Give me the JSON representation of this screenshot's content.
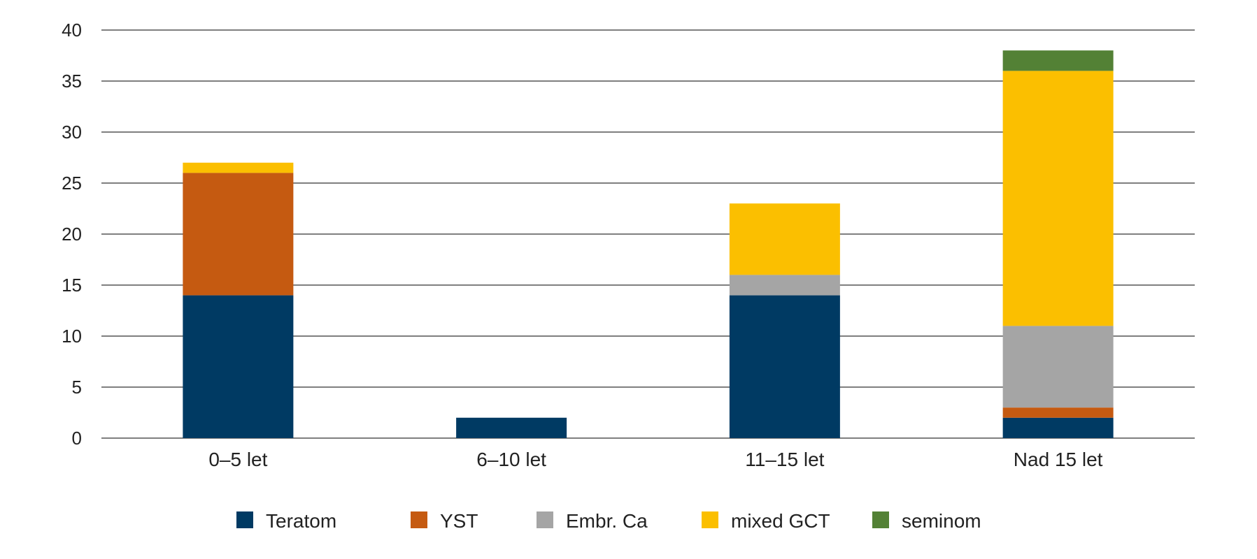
{
  "chart_data": {
    "type": "bar",
    "stacked": true,
    "categories": [
      "0–5 let",
      "6–10 let",
      "11–15 let",
      "Nad 15 let"
    ],
    "series": [
      {
        "name": "Teratom",
        "color": "#003a63",
        "values": [
          14,
          2,
          14,
          2
        ]
      },
      {
        "name": "YST",
        "color": "#c55a11",
        "values": [
          12,
          0,
          0,
          1
        ]
      },
      {
        "name": "Embr. Ca",
        "color": "#a5a5a5",
        "values": [
          0,
          0,
          2,
          8
        ]
      },
      {
        "name": "mixed GCT",
        "color": "#fbbf00",
        "values": [
          1,
          0,
          7,
          25
        ]
      },
      {
        "name": "seminom",
        "color": "#538135",
        "values": [
          0,
          0,
          0,
          2
        ]
      }
    ],
    "ylim": [
      0,
      40
    ],
    "yticks": [
      0,
      5,
      10,
      15,
      20,
      25,
      30,
      35,
      40
    ],
    "grid": true,
    "legend_position": "bottom"
  }
}
